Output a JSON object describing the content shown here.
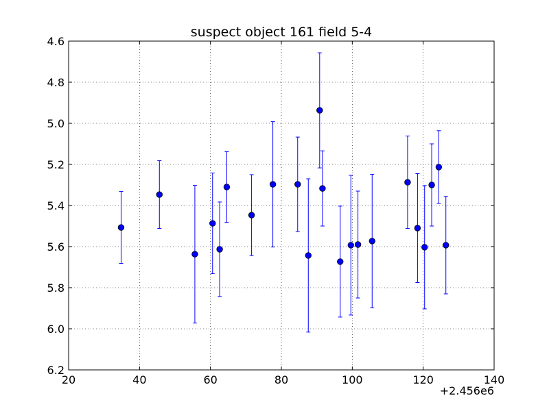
{
  "chart_data": {
    "type": "scatter",
    "title": "suspect object 161 field 5-4",
    "xlabel": "",
    "ylabel": "",
    "x_offset_label": "+2.456e6",
    "xlim": [
      20,
      140
    ],
    "ylim": [
      4.6,
      6.2
    ],
    "y_inverted": true,
    "grid": true,
    "x_ticks": [
      20,
      40,
      60,
      80,
      100,
      120,
      140
    ],
    "x_tick_labels": [
      "20",
      "40",
      "60",
      "80",
      "100",
      "120",
      "140"
    ],
    "y_ticks": [
      4.6,
      4.8,
      5.0,
      5.2,
      5.4,
      5.6,
      5.8,
      6.0,
      6.2
    ],
    "y_tick_labels": [
      "4.6",
      "4.8",
      "5.0",
      "5.2",
      "5.4",
      "5.6",
      "5.8",
      "6.0",
      "6.2"
    ],
    "series": [
      {
        "color": "#0000ff",
        "marker": "circle",
        "error_bars": true,
        "points": [
          {
            "x": 34.8,
            "y": 5.507,
            "err": 0.175
          },
          {
            "x": 45.6,
            "y": 5.347,
            "err": 0.165
          },
          {
            "x": 55.6,
            "y": 5.637,
            "err": 0.335
          },
          {
            "x": 60.6,
            "y": 5.487,
            "err": 0.245
          },
          {
            "x": 62.6,
            "y": 5.613,
            "err": 0.23
          },
          {
            "x": 64.6,
            "y": 5.31,
            "err": 0.172
          },
          {
            "x": 71.6,
            "y": 5.447,
            "err": 0.197
          },
          {
            "x": 77.6,
            "y": 5.297,
            "err": 0.305
          },
          {
            "x": 84.6,
            "y": 5.297,
            "err": 0.23
          },
          {
            "x": 87.6,
            "y": 5.643,
            "err": 0.373
          },
          {
            "x": 90.8,
            "y": 4.937,
            "err": 0.28
          },
          {
            "x": 91.6,
            "y": 5.317,
            "err": 0.183
          },
          {
            "x": 96.6,
            "y": 5.673,
            "err": 0.27
          },
          {
            "x": 99.6,
            "y": 5.593,
            "err": 0.34
          },
          {
            "x": 101.6,
            "y": 5.59,
            "err": 0.26
          },
          {
            "x": 105.6,
            "y": 5.573,
            "err": 0.325
          },
          {
            "x": 115.6,
            "y": 5.287,
            "err": 0.225
          },
          {
            "x": 118.4,
            "y": 5.51,
            "err": 0.265
          },
          {
            "x": 120.4,
            "y": 5.603,
            "err": 0.3
          },
          {
            "x": 122.4,
            "y": 5.3,
            "err": 0.2
          },
          {
            "x": 124.4,
            "y": 5.213,
            "err": 0.177
          },
          {
            "x": 126.4,
            "y": 5.593,
            "err": 0.237
          }
        ]
      }
    ]
  }
}
